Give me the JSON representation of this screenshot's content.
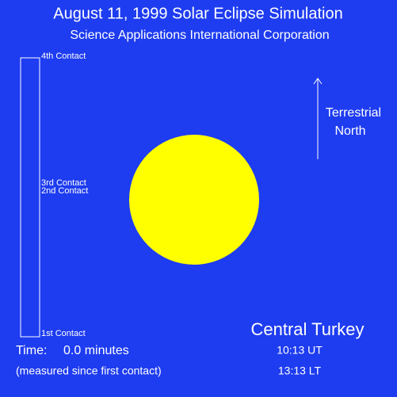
{
  "header": {
    "title": "August 11, 1999 Solar Eclipse Simulation",
    "subtitle": "Science Applications International Corporation"
  },
  "contacts": {
    "fourth": "4th Contact",
    "third": "3rd Contact",
    "second": "2nd Contact",
    "first": "1st Contact"
  },
  "north": {
    "line1": "Terrestrial",
    "line2": "North"
  },
  "location": "Central Turkey",
  "time": {
    "label": "Time:",
    "value": "0.0 minutes",
    "note": "(measured since first contact)",
    "ut": "10:13 UT",
    "lt": "13:13 LT"
  }
}
